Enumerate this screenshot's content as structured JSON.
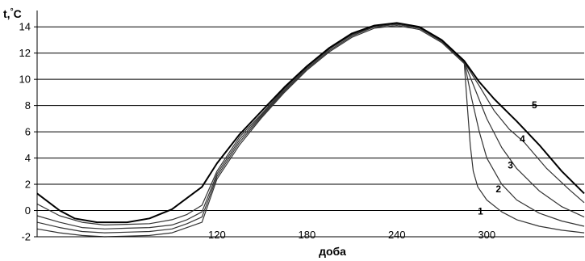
{
  "chart_data": {
    "type": "line",
    "title": "",
    "ylabel": "t,°C",
    "xlabel": "доба",
    "xlim": [
      0,
      365
    ],
    "ylim": [
      -2,
      15
    ],
    "x_ticks": [
      120,
      180,
      240,
      300
    ],
    "y_ticks": [
      -2,
      0,
      2,
      4,
      6,
      8,
      10,
      12,
      14
    ],
    "grid": "horizontal",
    "colors": {
      "axis": "#000000",
      "grid": "#000000",
      "text": "#000000"
    },
    "series": [
      {
        "name": "1",
        "color": "#333333",
        "label_at": [
          294,
          -0.3
        ],
        "points": [
          [
            0,
            -1.4
          ],
          [
            15,
            -1.7
          ],
          [
            30,
            -1.9
          ],
          [
            45,
            -2.0
          ],
          [
            60,
            -1.95
          ],
          [
            75,
            -1.9
          ],
          [
            90,
            -1.7
          ],
          [
            100,
            -1.3
          ],
          [
            110,
            -0.9
          ],
          [
            120,
            2.4
          ],
          [
            135,
            5.0
          ],
          [
            150,
            7.1
          ],
          [
            165,
            9.0
          ],
          [
            180,
            10.7
          ],
          [
            195,
            12.1
          ],
          [
            210,
            13.2
          ],
          [
            225,
            13.9
          ],
          [
            240,
            14.1
          ],
          [
            255,
            13.8
          ],
          [
            270,
            12.8
          ],
          [
            285,
            11.2
          ],
          [
            287,
            8.0
          ],
          [
            289,
            5.0
          ],
          [
            291,
            3.0
          ],
          [
            294,
            1.8
          ],
          [
            300,
            0.8
          ],
          [
            310,
            -0.1
          ],
          [
            320,
            -0.7
          ],
          [
            335,
            -1.2
          ],
          [
            350,
            -1.5
          ],
          [
            365,
            -1.7
          ]
        ]
      },
      {
        "name": "2",
        "color": "#333333",
        "label_at": [
          306,
          1.4
        ],
        "points": [
          [
            0,
            -0.9
          ],
          [
            15,
            -1.3
          ],
          [
            30,
            -1.6
          ],
          [
            45,
            -1.7
          ],
          [
            60,
            -1.65
          ],
          [
            75,
            -1.6
          ],
          [
            90,
            -1.4
          ],
          [
            100,
            -1.0
          ],
          [
            110,
            -0.5
          ],
          [
            120,
            2.6
          ],
          [
            135,
            5.2
          ],
          [
            150,
            7.2
          ],
          [
            165,
            9.1
          ],
          [
            180,
            10.8
          ],
          [
            195,
            12.2
          ],
          [
            210,
            13.3
          ],
          [
            225,
            14.0
          ],
          [
            240,
            14.2
          ],
          [
            255,
            13.9
          ],
          [
            270,
            12.9
          ],
          [
            285,
            11.3
          ],
          [
            290,
            8.5
          ],
          [
            295,
            6.0
          ],
          [
            300,
            4.0
          ],
          [
            310,
            2.0
          ],
          [
            320,
            0.8
          ],
          [
            335,
            -0.2
          ],
          [
            350,
            -0.8
          ],
          [
            365,
            -1.2
          ]
        ]
      },
      {
        "name": "3",
        "color": "#333333",
        "label_at": [
          314,
          3.2
        ],
        "points": [
          [
            0,
            -0.4
          ],
          [
            15,
            -0.9
          ],
          [
            30,
            -1.3
          ],
          [
            45,
            -1.4
          ],
          [
            60,
            -1.35
          ],
          [
            75,
            -1.3
          ],
          [
            90,
            -1.1
          ],
          [
            100,
            -0.7
          ],
          [
            110,
            -0.1
          ],
          [
            120,
            2.8
          ],
          [
            135,
            5.4
          ],
          [
            150,
            7.3
          ],
          [
            165,
            9.2
          ],
          [
            180,
            10.9
          ],
          [
            195,
            12.3
          ],
          [
            210,
            13.4
          ],
          [
            225,
            14.0
          ],
          [
            240,
            14.2
          ],
          [
            255,
            13.9
          ],
          [
            270,
            12.9
          ],
          [
            285,
            11.3
          ],
          [
            292,
            9.3
          ],
          [
            300,
            7.0
          ],
          [
            310,
            4.8
          ],
          [
            320,
            3.2
          ],
          [
            335,
            1.5
          ],
          [
            350,
            0.3
          ],
          [
            365,
            -0.5
          ]
        ]
      },
      {
        "name": "4",
        "color": "#333333",
        "label_at": [
          322,
          5.2
        ],
        "points": [
          [
            0,
            0.5
          ],
          [
            15,
            -0.4
          ],
          [
            30,
            -0.9
          ],
          [
            45,
            -1.1
          ],
          [
            60,
            -1.05
          ],
          [
            75,
            -1.0
          ],
          [
            90,
            -0.7
          ],
          [
            100,
            -0.3
          ],
          [
            110,
            0.4
          ],
          [
            120,
            3.0
          ],
          [
            135,
            5.6
          ],
          [
            150,
            7.4
          ],
          [
            165,
            9.3
          ],
          [
            180,
            11.0
          ],
          [
            195,
            12.4
          ],
          [
            210,
            13.4
          ],
          [
            225,
            14.1
          ],
          [
            240,
            14.3
          ],
          [
            255,
            14.0
          ],
          [
            270,
            13.0
          ],
          [
            285,
            11.3
          ],
          [
            295,
            9.5
          ],
          [
            305,
            7.6
          ],
          [
            315,
            6.2
          ],
          [
            325,
            5.2
          ],
          [
            340,
            3.2
          ],
          [
            355,
            1.6
          ],
          [
            365,
            0.6
          ]
        ]
      },
      {
        "name": "5",
        "color": "#000000",
        "label_at": [
          330,
          7.8
        ],
        "points": [
          [
            0,
            1.3
          ],
          [
            15,
            0.0
          ],
          [
            25,
            -0.6
          ],
          [
            40,
            -0.9
          ],
          [
            60,
            -0.9
          ],
          [
            75,
            -0.6
          ],
          [
            90,
            0.1
          ],
          [
            110,
            1.8
          ],
          [
            120,
            3.6
          ],
          [
            135,
            5.8
          ],
          [
            150,
            7.6
          ],
          [
            165,
            9.4
          ],
          [
            180,
            11.0
          ],
          [
            195,
            12.4
          ],
          [
            210,
            13.5
          ],
          [
            225,
            14.1
          ],
          [
            240,
            14.3
          ],
          [
            255,
            14.0
          ],
          [
            270,
            13.0
          ],
          [
            285,
            11.4
          ],
          [
            295,
            9.8
          ],
          [
            305,
            8.5
          ],
          [
            320,
            6.8
          ],
          [
            335,
            5.0
          ],
          [
            350,
            3.0
          ],
          [
            365,
            1.3
          ]
        ]
      }
    ]
  }
}
